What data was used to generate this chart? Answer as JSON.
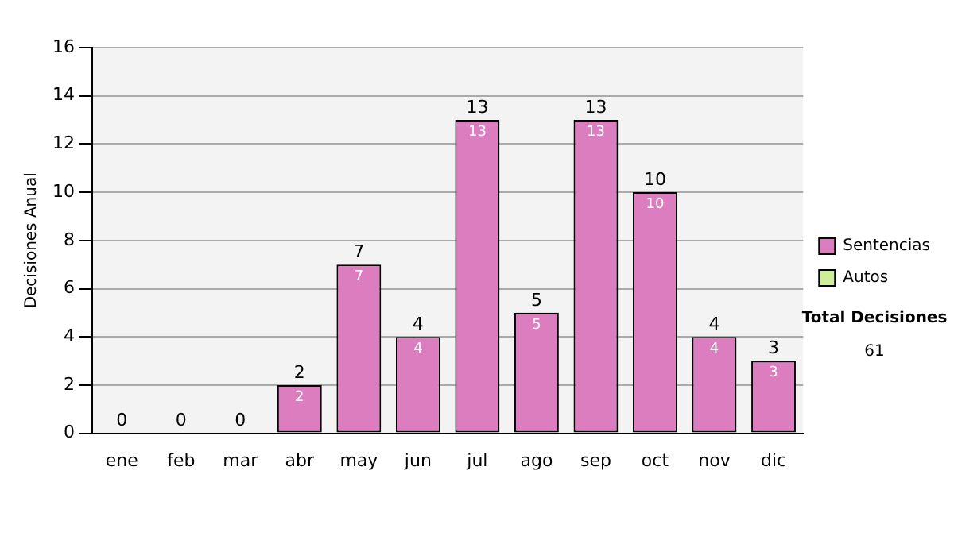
{
  "chart_data": {
    "type": "bar",
    "stacked": true,
    "ylabel": "Decisiones Anual",
    "categories": [
      "ene",
      "feb",
      "mar",
      "abr",
      "may",
      "jun",
      "jul",
      "ago",
      "sep",
      "oct",
      "nov",
      "dic"
    ],
    "series": [
      {
        "name": "Sentencias",
        "color": "#dc7dc0",
        "values": [
          0,
          0,
          0,
          2,
          7,
          4,
          13,
          5,
          13,
          10,
          4,
          3
        ],
        "value_labels": [
          null,
          null,
          null,
          "2",
          "7",
          "4",
          "13",
          "5",
          "13",
          "10",
          "4",
          "3"
        ]
      },
      {
        "name": "Autos",
        "color": "#ccee99",
        "values": [
          0,
          0,
          0,
          0,
          0,
          0,
          0,
          0,
          0,
          0,
          0,
          0
        ]
      }
    ],
    "totals": [
      "0",
      "0",
      "0",
      "2",
      "7",
      "4",
      "13",
      "5",
      "13",
      "10",
      "4",
      "3"
    ],
    "ylim": [
      0,
      16
    ],
    "yticks": [
      0,
      2,
      4,
      6,
      8,
      10,
      12,
      14,
      16
    ],
    "grid": "y",
    "legend": "right",
    "annotations": [
      "Total Decisiones",
      "61"
    ]
  }
}
